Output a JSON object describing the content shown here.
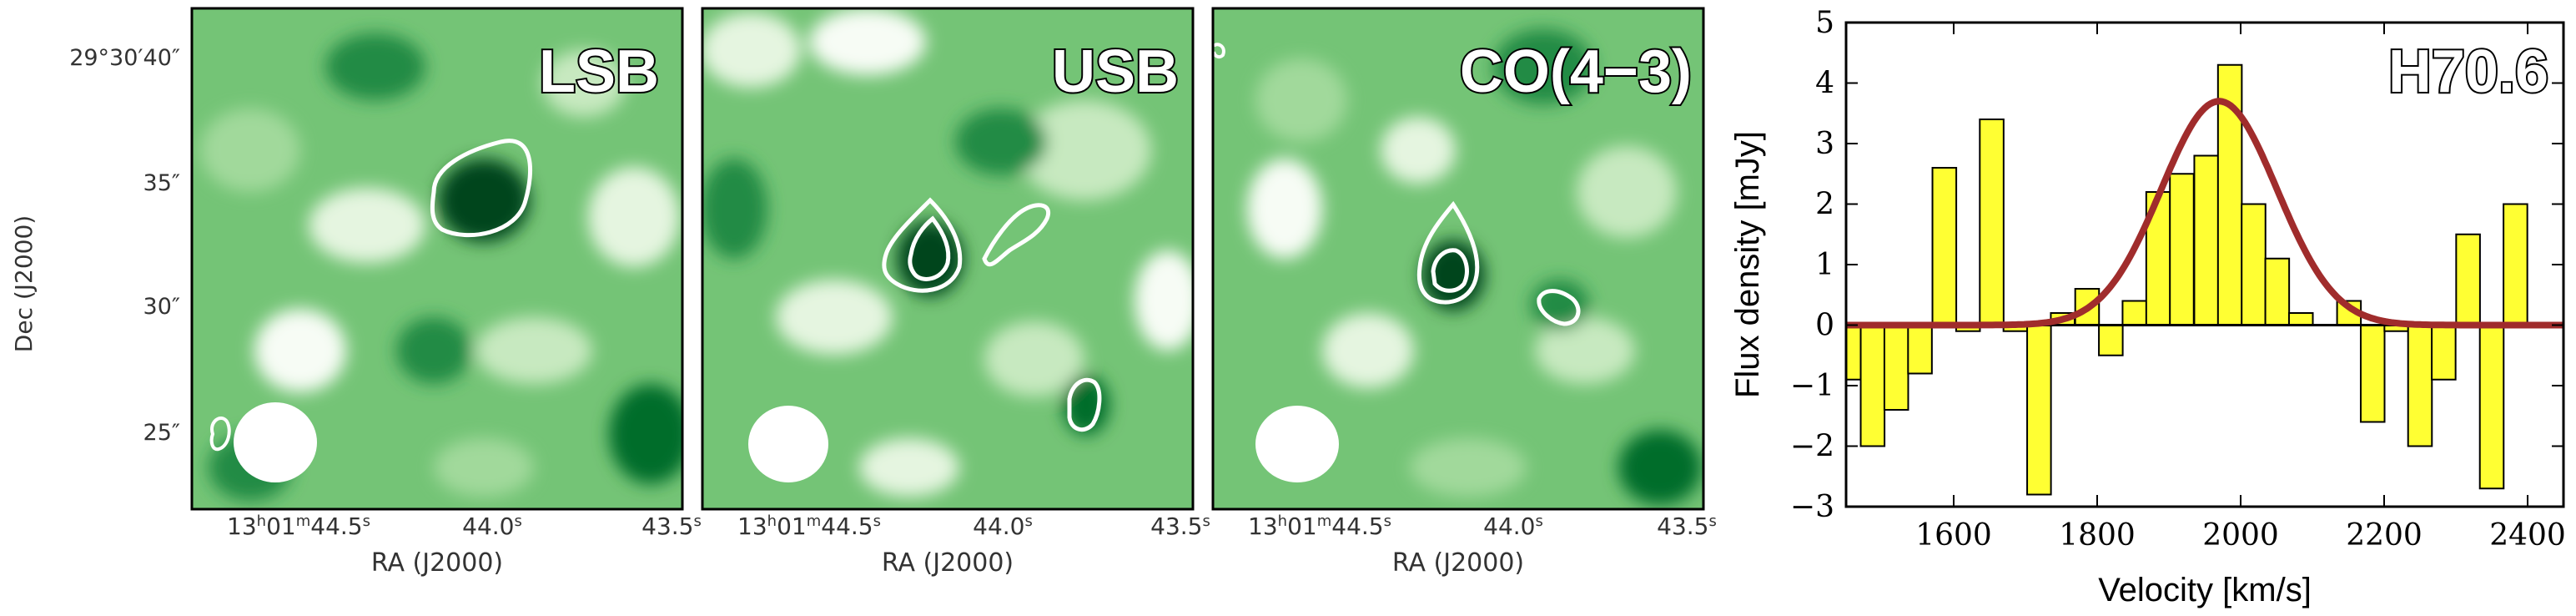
{
  "maps": {
    "panels": [
      {
        "id": "lsb",
        "label": "LSB",
        "contours": [
          "blob-a",
          "blob-b"
        ]
      },
      {
        "id": "usb",
        "label": "USB",
        "contours": [
          "blob-c",
          "blob-d",
          "blob-e"
        ]
      },
      {
        "id": "co",
        "label": "CO(4−3)",
        "contours": [
          "blob-f",
          "blob-g",
          "blob-h"
        ]
      }
    ],
    "dec_ticks": [
      "29°30′40″",
      "35″",
      "30″",
      "25″"
    ],
    "ra_ticks": [
      "13h01m44.5s",
      "44.0s",
      "43.5s"
    ],
    "ra_tick_parts": {
      "first_h": "13",
      "first_m": "01",
      "first_s": "44.5",
      "mid": "44.0",
      "last": "43.5"
    },
    "ra_label": "RA (J2000)",
    "dec_label": "Dec (J2000)",
    "colormap": {
      "low": "#f7fcf5",
      "high": "#00441b"
    },
    "contour_color": "#ffffff",
    "beam_color": "#ffffff"
  },
  "chart_data": {
    "type": "bar",
    "title": "H70.6",
    "xlabel": "Velocity [km/s]",
    "ylabel": "Flux density [mJy]",
    "xlim": [
      1450,
      2450
    ],
    "ylim": [
      -3,
      5
    ],
    "xticks": [
      1600,
      1800,
      2000,
      2200,
      2400
    ],
    "yticks": [
      -3,
      -2,
      -1,
      0,
      1,
      2,
      3,
      4,
      5
    ],
    "bin_width": 33.2,
    "bin_centers": [
      1454,
      1487,
      1520,
      1553,
      1587,
      1620,
      1653,
      1686,
      1719,
      1752,
      1786,
      1819,
      1852,
      1885,
      1918,
      1952,
      1985,
      2018,
      2051,
      2084,
      2118,
      2151,
      2184,
      2217,
      2250,
      2283,
      2317,
      2350,
      2383,
      2416,
      2449
    ],
    "values": [
      -0.9,
      -2.0,
      -1.4,
      -0.8,
      2.6,
      -0.1,
      3.4,
      -0.1,
      -2.8,
      0.2,
      0.6,
      -0.5,
      0.4,
      2.2,
      2.5,
      2.8,
      4.3,
      2.0,
      1.1,
      0.2,
      0.0,
      0.4,
      -1.6,
      -0.1,
      -2.0,
      -0.9,
      1.5,
      -2.7,
      2.0,
      0.0,
      0.0
    ],
    "fit": {
      "type": "gaussian",
      "amplitude": 3.7,
      "center": 1970,
      "fwhm": 190,
      "offset": 0.0
    },
    "bar_color": "#ffff33",
    "fit_color": "#a02c2c",
    "grid": false
  }
}
